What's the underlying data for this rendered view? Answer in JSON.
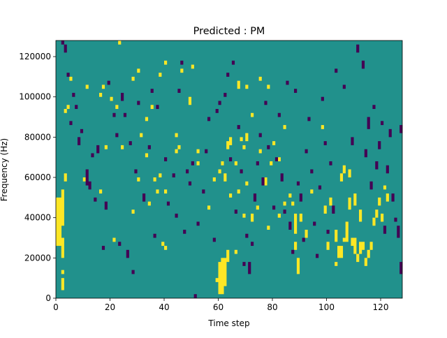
{
  "chart_data": {
    "type": "heatmap",
    "title": "Predicted : PM",
    "xlabel": "Time step",
    "ylabel": "Frequency (Hz)",
    "xlim": [
      0,
      128
    ],
    "ylim": [
      0,
      128000
    ],
    "x_ticks": [
      0,
      20,
      40,
      60,
      80,
      100,
      120
    ],
    "y_ticks": [
      0,
      20000,
      40000,
      60000,
      80000,
      100000,
      120000
    ],
    "y_tick_labels": [
      "0",
      "20000",
      "40000",
      "60000",
      "80000",
      "100000",
      "120000"
    ],
    "grid": false,
    "colormap": "viridis",
    "colors": {
      "background": "#21918c",
      "high": "#fde725",
      "low": "#440154"
    },
    "cell_size": {
      "time": 1,
      "frequency": 2000
    },
    "yellow_cells": [
      [
        0,
        13,
        25
      ],
      [
        1,
        13,
        25
      ],
      [
        2,
        2,
        5
      ],
      [
        2,
        6,
        7
      ],
      [
        2,
        10,
        15
      ],
      [
        2,
        18,
        27
      ],
      [
        3,
        29,
        31
      ],
      [
        3,
        46,
        47
      ],
      [
        4,
        47,
        48
      ],
      [
        5,
        54,
        55
      ],
      [
        10,
        29,
        30
      ],
      [
        11,
        52,
        53
      ],
      [
        16,
        50,
        51
      ],
      [
        16,
        26,
        27
      ],
      [
        17,
        52,
        53
      ],
      [
        18,
        37,
        38
      ],
      [
        20,
        49,
        50
      ],
      [
        21,
        14,
        15
      ],
      [
        22,
        47,
        48
      ],
      [
        23,
        63,
        64
      ],
      [
        24,
        37,
        38
      ],
      [
        28,
        54,
        55
      ],
      [
        28,
        21,
        22
      ],
      [
        30,
        56,
        57
      ],
      [
        30,
        29,
        30
      ],
      [
        31,
        40,
        41
      ],
      [
        33,
        44,
        45
      ],
      [
        33,
        35,
        36
      ],
      [
        34,
        23,
        24
      ],
      [
        35,
        47,
        48
      ],
      [
        36,
        29,
        30
      ],
      [
        37,
        26,
        27
      ],
      [
        38,
        55,
        56
      ],
      [
        38,
        30,
        31
      ],
      [
        39,
        13,
        14
      ],
      [
        40,
        12,
        13
      ],
      [
        40,
        26,
        27
      ],
      [
        40,
        58,
        59
      ],
      [
        44,
        36,
        37
      ],
      [
        44,
        40,
        41
      ],
      [
        45,
        37,
        38
      ],
      [
        46,
        56,
        57
      ],
      [
        49,
        48,
        50
      ],
      [
        50,
        57,
        58
      ],
      [
        52,
        33,
        34
      ],
      [
        52,
        36,
        37
      ],
      [
        56,
        22,
        23
      ],
      [
        58,
        29,
        30
      ],
      [
        59,
        4,
        5
      ],
      [
        60,
        1,
        9
      ],
      [
        60,
        31,
        32
      ],
      [
        61,
        1,
        10
      ],
      [
        61,
        33,
        34
      ],
      [
        62,
        3,
        10
      ],
      [
        62,
        29,
        31
      ],
      [
        63,
        9,
        12
      ],
      [
        63,
        37,
        39
      ],
      [
        64,
        25,
        26
      ],
      [
        64,
        38,
        40
      ],
      [
        66,
        11,
        12
      ],
      [
        66,
        33,
        34
      ],
      [
        67,
        26,
        27
      ],
      [
        67,
        52,
        54
      ],
      [
        68,
        39,
        40
      ],
      [
        69,
        20,
        21
      ],
      [
        69,
        37,
        38
      ],
      [
        70,
        28,
        29
      ],
      [
        70,
        39,
        41
      ],
      [
        70,
        52,
        53
      ],
      [
        72,
        19,
        21
      ],
      [
        72,
        45,
        46
      ],
      [
        74,
        22,
        23
      ],
      [
        75,
        36,
        37
      ],
      [
        75,
        54,
        55
      ],
      [
        77,
        28,
        30
      ],
      [
        78,
        17,
        18
      ],
      [
        78,
        52,
        53
      ],
      [
        79,
        33,
        34
      ],
      [
        80,
        38,
        39
      ],
      [
        82,
        20,
        21
      ],
      [
        82,
        34,
        35
      ],
      [
        84,
        23,
        24
      ],
      [
        84,
        42,
        43
      ],
      [
        86,
        25,
        26
      ],
      [
        87,
        23,
        24
      ],
      [
        88,
        12,
        14
      ],
      [
        88,
        16,
        21
      ],
      [
        89,
        6,
        10
      ],
      [
        90,
        19,
        21
      ],
      [
        92,
        15,
        17
      ],
      [
        94,
        26,
        27
      ],
      [
        98,
        42,
        43
      ],
      [
        99,
        21,
        23
      ],
      [
        100,
        12,
        14
      ],
      [
        101,
        23,
        25
      ],
      [
        103,
        8,
        9
      ],
      [
        103,
        14,
        17
      ],
      [
        104,
        10,
        13
      ],
      [
        105,
        10,
        13
      ],
      [
        105,
        29,
        31
      ],
      [
        106,
        14,
        15
      ],
      [
        106,
        31,
        33
      ],
      [
        107,
        14,
        19
      ],
      [
        108,
        22,
        25
      ],
      [
        108,
        30,
        32
      ],
      [
        109,
        13,
        15
      ],
      [
        110,
        11,
        15
      ],
      [
        110,
        23,
        26
      ],
      [
        111,
        9,
        11
      ],
      [
        112,
        11,
        14
      ],
      [
        112,
        19,
        22
      ],
      [
        113,
        12,
        14
      ],
      [
        114,
        8,
        10
      ],
      [
        115,
        10,
        12
      ],
      [
        116,
        12,
        14
      ],
      [
        117,
        18,
        20
      ],
      [
        118,
        20,
        22
      ],
      [
        119,
        23,
        25
      ],
      [
        120,
        19,
        21
      ],
      [
        121,
        27,
        28
      ],
      [
        122,
        24,
        26
      ]
    ],
    "purple_cells": [
      [
        2,
        63,
        64
      ],
      [
        3,
        61,
        63
      ],
      [
        4,
        55,
        56
      ],
      [
        5,
        43,
        44
      ],
      [
        6,
        50,
        51
      ],
      [
        7,
        47,
        48
      ],
      [
        8,
        38,
        40
      ],
      [
        9,
        41,
        42
      ],
      [
        11,
        28,
        32
      ],
      [
        12,
        27,
        29
      ],
      [
        13,
        35,
        36
      ],
      [
        14,
        24,
        25
      ],
      [
        15,
        36,
        38
      ],
      [
        17,
        12,
        13
      ],
      [
        18,
        22,
        24
      ],
      [
        19,
        53,
        54
      ],
      [
        21,
        45,
        46
      ],
      [
        22,
        40,
        41
      ],
      [
        23,
        13,
        14
      ],
      [
        24,
        49,
        51
      ],
      [
        25,
        45,
        46
      ],
      [
        26,
        10,
        12
      ],
      [
        27,
        38,
        39
      ],
      [
        28,
        6,
        7
      ],
      [
        29,
        31,
        32
      ],
      [
        30,
        48,
        49
      ],
      [
        32,
        24,
        26
      ],
      [
        34,
        37,
        38
      ],
      [
        35,
        51,
        52
      ],
      [
        36,
        15,
        16
      ],
      [
        37,
        47,
        48
      ],
      [
        40,
        34,
        35
      ],
      [
        41,
        23,
        24
      ],
      [
        43,
        30,
        31
      ],
      [
        44,
        20,
        21
      ],
      [
        45,
        51,
        52
      ],
      [
        46,
        58,
        59
      ],
      [
        47,
        16,
        17
      ],
      [
        48,
        31,
        32
      ],
      [
        49,
        28,
        29
      ],
      [
        50,
        33,
        34
      ],
      [
        51,
        0,
        1
      ],
      [
        52,
        18,
        19
      ],
      [
        54,
        26,
        27
      ],
      [
        55,
        36,
        37
      ],
      [
        56,
        44,
        45
      ],
      [
        58,
        14,
        15
      ],
      [
        59,
        46,
        47
      ],
      [
        60,
        48,
        49
      ],
      [
        62,
        50,
        51
      ],
      [
        63,
        55,
        56
      ],
      [
        64,
        34,
        35
      ],
      [
        65,
        58,
        59
      ],
      [
        66,
        21,
        22
      ],
      [
        67,
        42,
        43
      ],
      [
        68,
        31,
        32
      ],
      [
        69,
        8,
        9
      ],
      [
        70,
        15,
        16
      ],
      [
        71,
        6,
        9
      ],
      [
        72,
        13,
        14
      ],
      [
        73,
        24,
        26
      ],
      [
        74,
        33,
        34
      ],
      [
        75,
        40,
        41
      ],
      [
        76,
        28,
        30
      ],
      [
        77,
        48,
        49
      ],
      [
        78,
        37,
        38
      ],
      [
        80,
        22,
        23
      ],
      [
        81,
        34,
        35
      ],
      [
        82,
        45,
        46
      ],
      [
        83,
        29,
        31
      ],
      [
        84,
        21,
        22
      ],
      [
        85,
        53,
        54
      ],
      [
        86,
        17,
        19
      ],
      [
        87,
        11,
        12
      ],
      [
        88,
        51,
        52
      ],
      [
        89,
        28,
        29
      ],
      [
        90,
        24,
        26
      ],
      [
        91,
        14,
        15
      ],
      [
        92,
        36,
        37
      ],
      [
        93,
        44,
        45
      ],
      [
        94,
        31,
        32
      ],
      [
        95,
        18,
        19
      ],
      [
        96,
        10,
        11
      ],
      [
        97,
        27,
        28
      ],
      [
        98,
        49,
        50
      ],
      [
        99,
        38,
        39
      ],
      [
        100,
        16,
        17
      ],
      [
        101,
        33,
        34
      ],
      [
        102,
        21,
        23
      ],
      [
        103,
        56,
        57
      ],
      [
        106,
        52,
        53
      ],
      [
        109,
        38,
        40
      ],
      [
        111,
        61,
        63
      ],
      [
        113,
        57,
        59
      ],
      [
        114,
        35,
        37
      ],
      [
        115,
        42,
        45
      ],
      [
        116,
        27,
        29
      ],
      [
        117,
        47,
        48
      ],
      [
        118,
        32,
        34
      ],
      [
        119,
        37,
        39
      ],
      [
        120,
        43,
        44
      ],
      [
        121,
        16,
        18
      ],
      [
        122,
        31,
        33
      ],
      [
        123,
        40,
        42
      ],
      [
        124,
        24,
        26
      ],
      [
        125,
        19,
        20
      ],
      [
        126,
        15,
        18
      ],
      [
        127,
        6,
        9
      ],
      [
        127,
        41,
        43
      ]
    ]
  }
}
